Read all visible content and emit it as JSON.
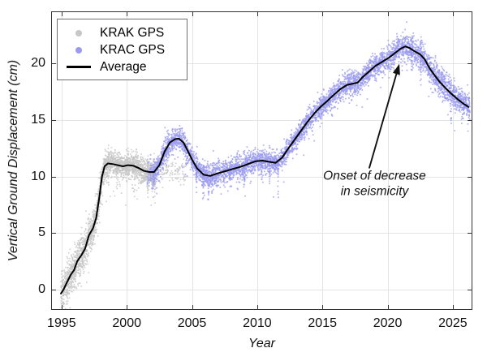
{
  "chart_data": {
    "type": "scatter",
    "title": "",
    "xlabel": "Year",
    "ylabel": "Vertical Ground Displacement (cm)",
    "xlim": [
      1994.2,
      2026.5
    ],
    "ylim": [
      -1.8,
      24.6
    ],
    "x_ticks": [
      1995,
      2000,
      2005,
      2010,
      2015,
      2020,
      2025
    ],
    "y_ticks": [
      0,
      5,
      10,
      15,
      20
    ],
    "grid": true,
    "grid_color": "#e4e4e4",
    "axis_color": "#333333",
    "background_color": "#ffffff",
    "legend_position": "top-left",
    "series": [
      {
        "name": "KRAK GPS",
        "marker": "dot",
        "color": "#c7c7c7",
        "scatter": {
          "x_start": 1994.95,
          "x_end": 2004.55,
          "n": 3200,
          "taper_after": 2002.25,
          "taper_keep": 0.16,
          "sigma": [
            [
              1995,
              0.8
            ],
            [
              1996.6,
              0.85
            ],
            [
              1997.6,
              0.8
            ],
            [
              1998.3,
              0.6
            ],
            [
              1999.5,
              0.5
            ],
            [
              2001.5,
              0.55
            ],
            [
              2004.6,
              0.55
            ]
          ],
          "outlier_prob": 0.02,
          "outlier_depth": 2.2,
          "down_streaks": [
            1999.25,
            2000.6,
            2001.6,
            2001.95,
            2002.15
          ],
          "trend_split": 2002.25,
          "trend_tail": [
            [
              2002.7,
              10.7
            ],
            [
              2003.2,
              10.6
            ],
            [
              2004.0,
              10.5
            ],
            [
              2004.6,
              10.3
            ]
          ]
        }
      },
      {
        "name": "KRAC GPS",
        "marker": "dot",
        "color": "#9a9aef",
        "scatter": {
          "x_start": 2001.55,
          "x_end": 2026.3,
          "n": 5600,
          "fade_in_until": 2002.0,
          "fade_in_keep": 0.55,
          "sigma": [
            [
              2001.55,
              0.6
            ],
            [
              2003.5,
              0.5
            ],
            [
              2005.5,
              0.55
            ],
            [
              2008,
              0.5
            ],
            [
              2012,
              0.45
            ],
            [
              2016,
              0.5
            ],
            [
              2019.5,
              0.55
            ],
            [
              2021.5,
              0.6
            ],
            [
              2023.5,
              0.65
            ],
            [
              2026.3,
              0.55
            ]
          ],
          "outlier_prob": 0.012,
          "outlier_depth": 2.0,
          "down_streaks": [
            2002.05,
            2005.35,
            2005.85,
            2006.25,
            2006.55,
            2009.0,
            2010.35,
            2010.95,
            2011.6,
            2021.85,
            2022.55,
            2024.85
          ]
        }
      },
      {
        "name": "Average",
        "marker": "line",
        "color": "#000000",
        "line_width": 2,
        "points": [
          [
            1994.95,
            -0.35
          ],
          [
            1995.15,
            0.0
          ],
          [
            1995.4,
            0.6
          ],
          [
            1995.7,
            1.3
          ],
          [
            1995.95,
            1.7
          ],
          [
            1996.2,
            2.5
          ],
          [
            1996.5,
            3.0
          ],
          [
            1996.8,
            3.6
          ],
          [
            1997.1,
            4.8
          ],
          [
            1997.4,
            5.4
          ],
          [
            1997.65,
            6.3
          ],
          [
            1997.9,
            8.2
          ],
          [
            1998.1,
            10.0
          ],
          [
            1998.3,
            10.9
          ],
          [
            1998.55,
            11.15
          ],
          [
            1998.9,
            11.1
          ],
          [
            1999.3,
            11.0
          ],
          [
            1999.7,
            10.9
          ],
          [
            2000.1,
            11.0
          ],
          [
            2000.5,
            10.95
          ],
          [
            2000.9,
            10.75
          ],
          [
            2001.3,
            10.5
          ],
          [
            2001.7,
            10.4
          ],
          [
            2002.1,
            10.4
          ],
          [
            2002.5,
            11.0
          ],
          [
            2002.9,
            12.2
          ],
          [
            2003.3,
            13.0
          ],
          [
            2003.7,
            13.3
          ],
          [
            2004.0,
            13.35
          ],
          [
            2004.35,
            13.0
          ],
          [
            2004.7,
            12.2
          ],
          [
            2005.0,
            11.5
          ],
          [
            2005.4,
            10.7
          ],
          [
            2005.9,
            10.15
          ],
          [
            2006.4,
            10.05
          ],
          [
            2006.9,
            10.25
          ],
          [
            2007.5,
            10.45
          ],
          [
            2008.1,
            10.65
          ],
          [
            2008.7,
            10.85
          ],
          [
            2009.3,
            11.1
          ],
          [
            2009.9,
            11.35
          ],
          [
            2010.4,
            11.4
          ],
          [
            2010.9,
            11.3
          ],
          [
            2011.4,
            11.2
          ],
          [
            2011.9,
            11.65
          ],
          [
            2012.4,
            12.5
          ],
          [
            2012.9,
            13.3
          ],
          [
            2013.4,
            14.1
          ],
          [
            2013.9,
            14.9
          ],
          [
            2014.4,
            15.6
          ],
          [
            2014.9,
            16.2
          ],
          [
            2015.4,
            16.7
          ],
          [
            2015.9,
            17.25
          ],
          [
            2016.4,
            17.75
          ],
          [
            2016.9,
            18.1
          ],
          [
            2017.3,
            18.2
          ],
          [
            2017.7,
            18.3
          ],
          [
            2018.1,
            18.8
          ],
          [
            2018.6,
            19.3
          ],
          [
            2019.1,
            19.8
          ],
          [
            2019.6,
            20.15
          ],
          [
            2020.1,
            20.5
          ],
          [
            2020.6,
            20.95
          ],
          [
            2021.0,
            21.3
          ],
          [
            2021.35,
            21.5
          ],
          [
            2021.7,
            21.35
          ],
          [
            2022.1,
            21.05
          ],
          [
            2022.5,
            20.8
          ],
          [
            2022.85,
            20.35
          ],
          [
            2023.2,
            19.6
          ],
          [
            2023.6,
            18.95
          ],
          [
            2024.0,
            18.35
          ],
          [
            2024.45,
            17.8
          ],
          [
            2024.9,
            17.3
          ],
          [
            2025.35,
            16.85
          ],
          [
            2025.8,
            16.45
          ],
          [
            2026.2,
            16.15
          ]
        ]
      }
    ],
    "annotation": {
      "lines": [
        "Onset of decrease",
        "in seismicity"
      ],
      "text_anchor": [
        2019.0,
        9.33
      ],
      "arrow_from": [
        2018.6,
        10.77
      ],
      "arrow_to": [
        2020.9,
        19.96
      ],
      "arrow_color": "#111111"
    }
  }
}
